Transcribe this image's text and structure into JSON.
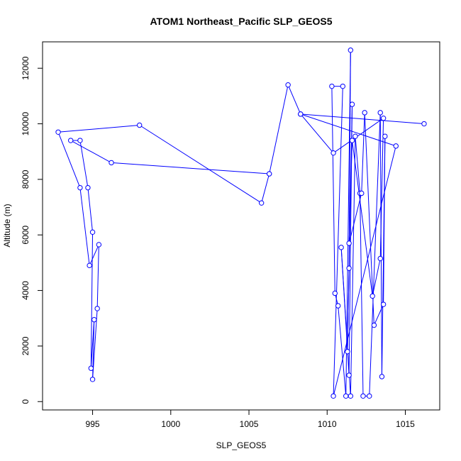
{
  "chart_data": {
    "type": "line",
    "title": "ATOM1 Northeast_Pacific SLP_GEOS5",
    "xlabel": "SLP_GEOS5",
    "ylabel": "Altitude (m)",
    "xlim": [
      991.8,
      1017.2
    ],
    "ylim": [
      -300,
      12950
    ],
    "xticks": [
      995,
      1000,
      1005,
      1010,
      1015
    ],
    "yticks": [
      0,
      2000,
      4000,
      6000,
      8000,
      10000,
      12000
    ],
    "line_color": "#0000ff",
    "marker": "open-circle",
    "grid": false,
    "legend": "none",
    "series": [
      {
        "x": [
          1016.2,
          1008.3,
          1014.4,
          1010.4,
          1011.0,
          1010.3,
          1010.5,
          1010.7,
          1011.2,
          1011.5,
          1011.4,
          1011.3,
          1011.6,
          1011.4,
          1010.9,
          1011.5,
          1011.8,
          1012.1,
          1012.3,
          1012.7,
          1013.4,
          1013.5,
          1013.7,
          1013.6,
          1013.0,
          1012.4,
          1012.2,
          1011.4,
          1011.6,
          1012.9,
          1013.4,
          1013.6,
          1010.4,
          1008.3,
          1007.5,
          1006.3,
          1005.8,
          998.0,
          992.8,
          994.2,
          994.8,
          995.4,
          995.3,
          995.0,
          995.1,
          994.9,
          995.0,
          994.7,
          994.2,
          993.6,
          996.2,
          1006.3
        ],
        "y": [
          10000,
          10350,
          9200,
          200,
          11350,
          11350,
          3900,
          3450,
          200,
          12650,
          4800,
          1800,
          10700,
          950,
          5550,
          200,
          9550,
          7500,
          200,
          200,
          10400,
          900,
          9550,
          3500,
          2750,
          10400,
          7500,
          5700,
          9400,
          3800,
          5150,
          10200,
          8950,
          10350,
          11400,
          8200,
          7150,
          9950,
          9700,
          7700,
          4900,
          5650,
          3350,
          800,
          2950,
          1200,
          6100,
          7700,
          9400,
          9400,
          8600,
          8200
        ]
      }
    ]
  }
}
